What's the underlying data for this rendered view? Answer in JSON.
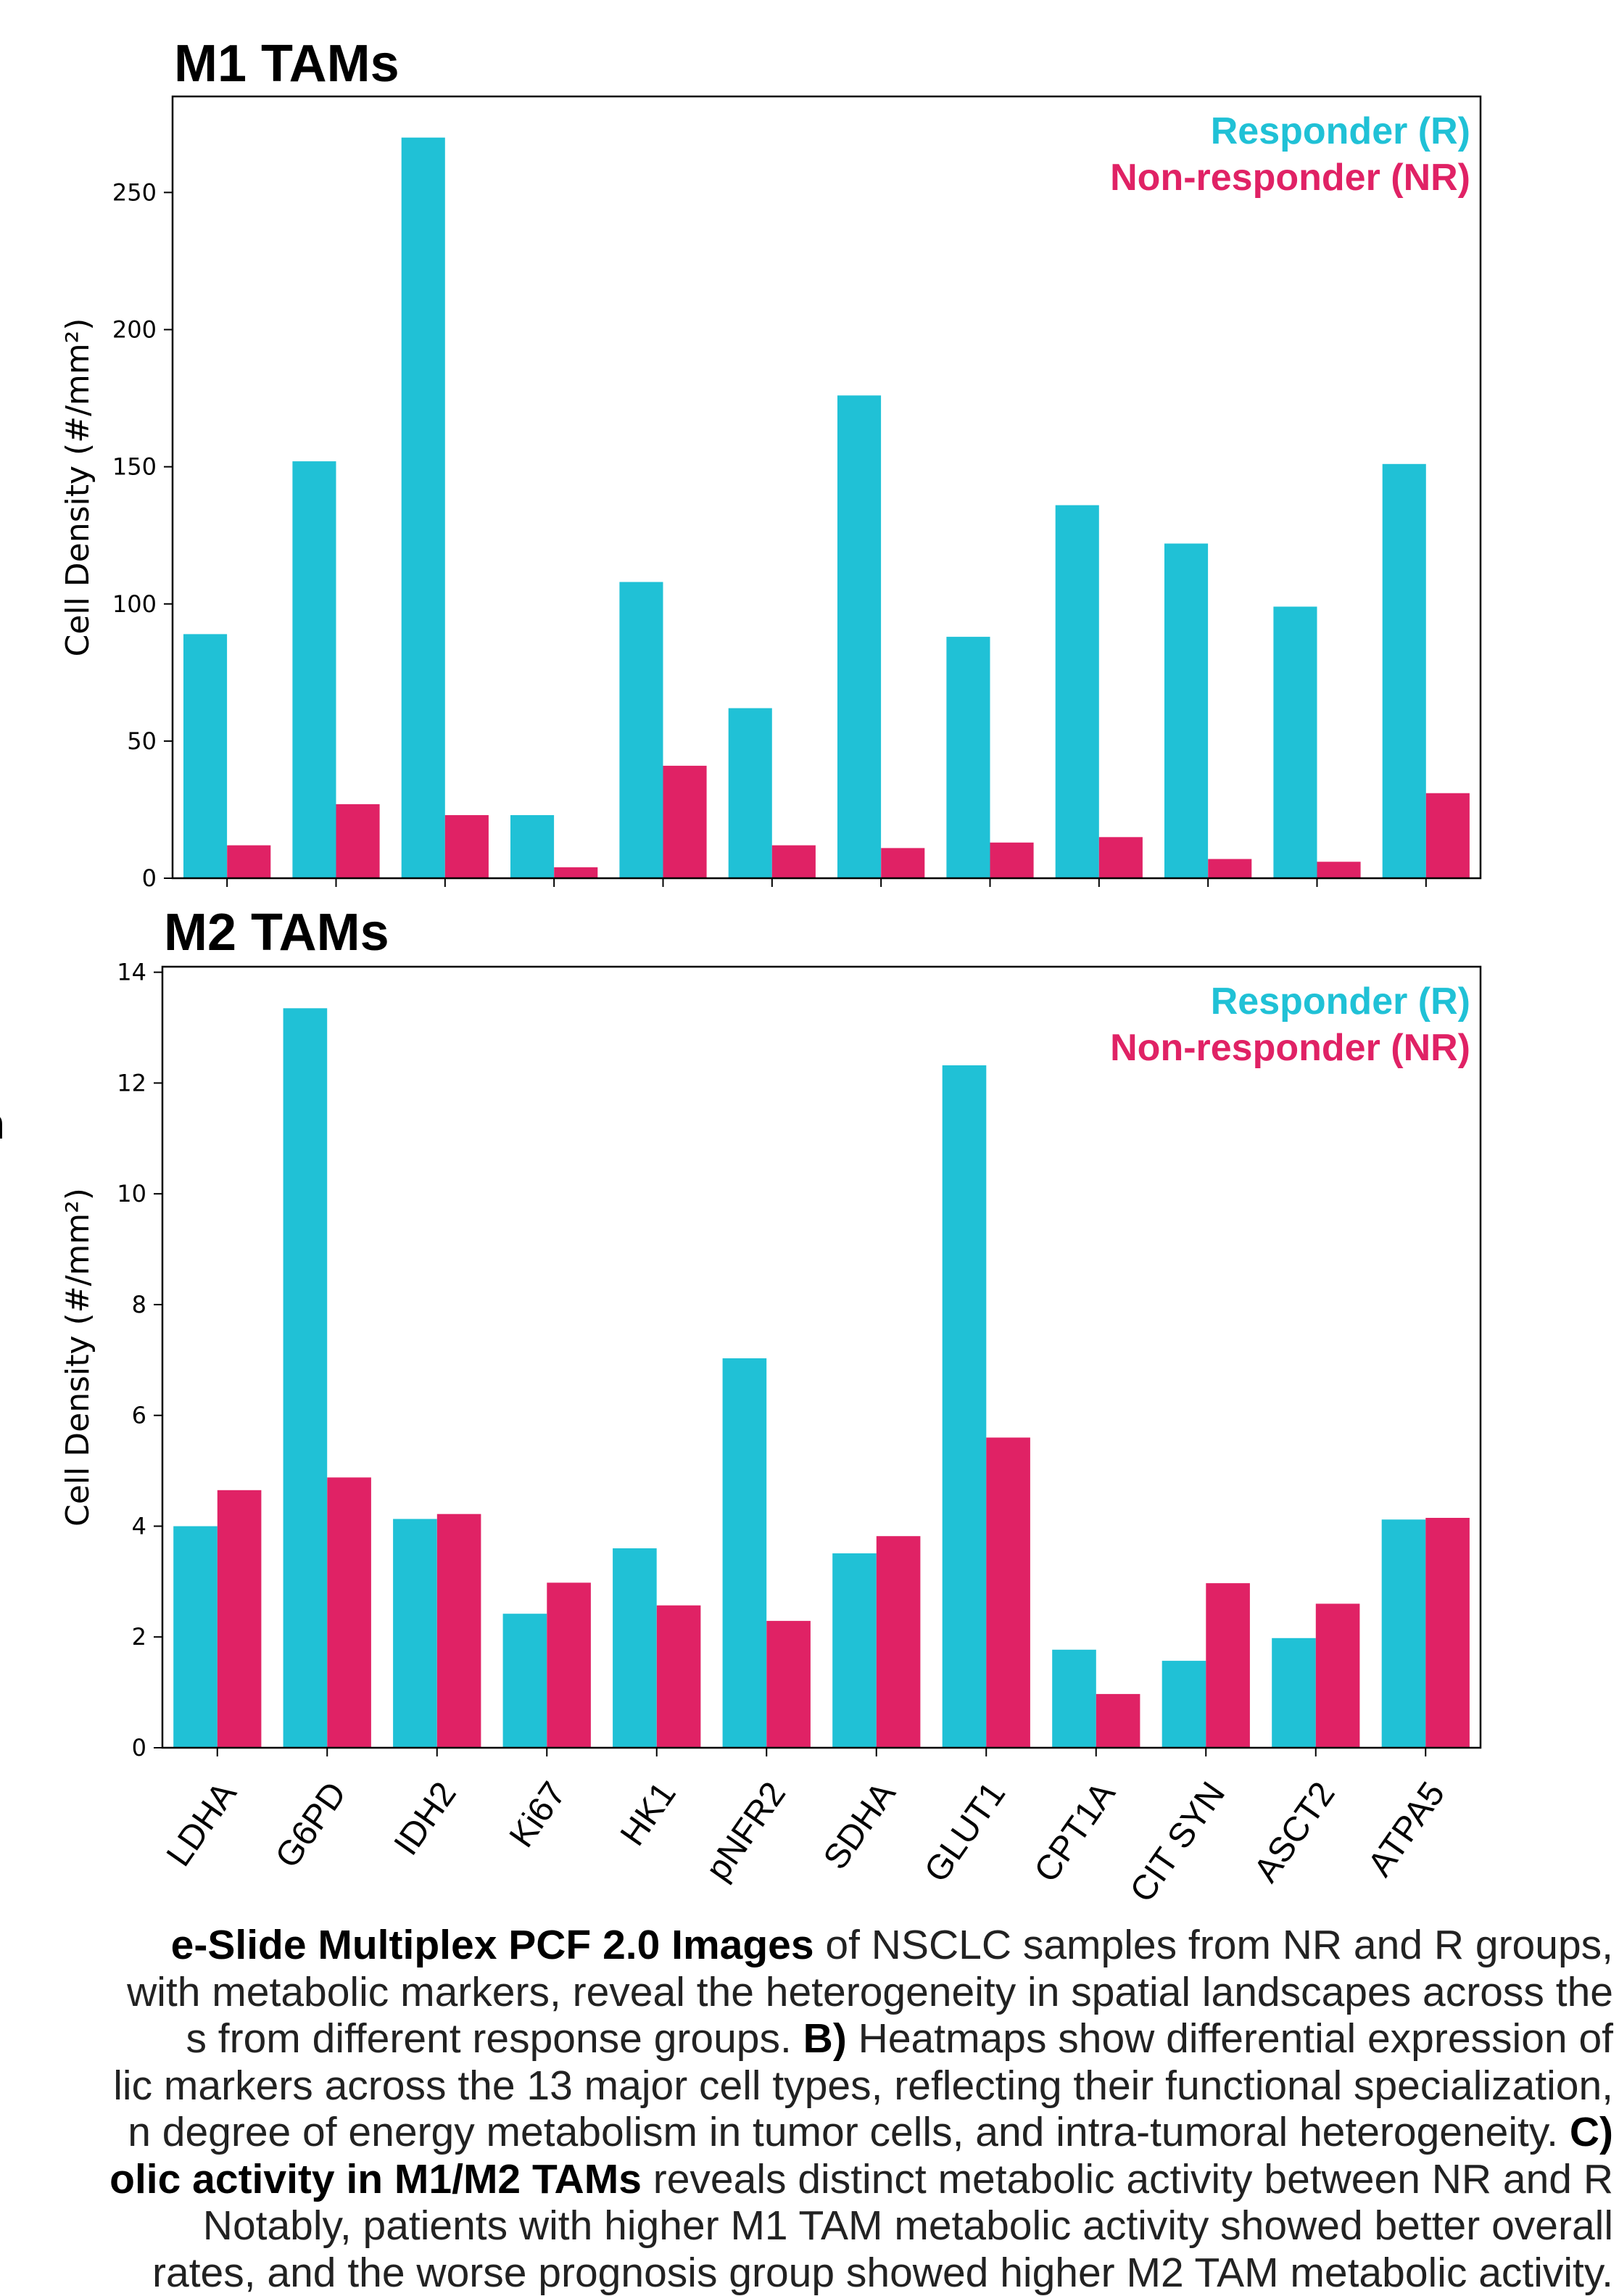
{
  "chart_data": [
    {
      "type": "bar",
      "title": "M1 TAMs",
      "ylabel": "Cell Density (#/mm²)",
      "ylim": [
        0,
        285
      ],
      "yticks": [
        "0",
        "50",
        "100",
        "150",
        "200",
        "250"
      ],
      "ytick_values": [
        0,
        50,
        100,
        150,
        200,
        250
      ],
      "categories": [
        "LDHA",
        "G6PD",
        "IDH2",
        "Ki67",
        "HK1",
        "pNFR2",
        "SDHA",
        "GLUT1",
        "CPT1A",
        "CIT SYN",
        "ASCT2",
        "ATPA5"
      ],
      "series": [
        {
          "name": "Responder (R)",
          "color": "#20c1d6",
          "values": [
            89,
            152,
            270,
            23,
            108,
            62,
            176,
            88,
            136,
            122,
            99,
            151
          ]
        },
        {
          "name": "Non-responder (NR)",
          "color": "#e02265",
          "values": [
            12,
            27,
            23,
            4,
            41,
            12,
            11,
            13,
            15,
            7,
            6,
            31
          ]
        }
      ],
      "legend": "top-right",
      "grid": false
    },
    {
      "type": "bar",
      "title": "M2 TAMs",
      "ylabel": "Cell Density (#/mm²)",
      "ylim": [
        0,
        14.1
      ],
      "yticks": [
        "0",
        "2",
        "4",
        "6",
        "8",
        "10",
        "12",
        "14"
      ],
      "ytick_values": [
        0,
        2,
        4,
        6,
        8,
        10,
        12,
        14
      ],
      "categories": [
        "LDHA",
        "G6PD",
        "IDH2",
        "Ki67",
        "HK1",
        "pNFR2",
        "SDHA",
        "GLUT1",
        "CPT1A",
        "CIT SYN",
        "ASCT2",
        "ATPA5"
      ],
      "series": [
        {
          "name": "Responder (R)",
          "color": "#20c1d6",
          "values": [
            4.0,
            13.35,
            4.13,
            2.42,
            3.6,
            7.03,
            3.51,
            12.32,
            1.77,
            1.57,
            1.98,
            4.12
          ]
        },
        {
          "name": "Non-responder (NR)",
          "color": "#e02265",
          "values": [
            4.65,
            4.88,
            4.22,
            2.98,
            2.57,
            2.29,
            3.82,
            5.6,
            0.97,
            2.97,
            2.6,
            4.15
          ]
        }
      ],
      "legend": "top-right",
      "grid": false
    }
  ],
  "caption": {
    "lines": [
      [
        {
          "t": "e-Slide Multiplex PCF 2.0 Images",
          "b": true
        },
        {
          "t": " of NSCLC samples from NR and R groups,",
          "b": false
        }
      ],
      [
        {
          "t": "with metabolic markers, reveal the heterogeneity in spatial landscapes across the",
          "b": false
        }
      ],
      [
        {
          "t": "s from different response groups. ",
          "b": false
        },
        {
          "t": "B)",
          "b": true
        },
        {
          "t": " Heatmaps show differential expression of",
          "b": false
        }
      ],
      [
        {
          "t": "lic markers across the 13 major cell types, reflecting their functional specialization,",
          "b": false
        }
      ],
      [
        {
          "t": "n degree of energy metabolism in tumor cells, and intra-tumoral heterogeneity. ",
          "b": false
        },
        {
          "t": "C)",
          "b": true
        }
      ],
      [
        {
          "t": "olic activity in M1/M2 TAMs",
          "b": true
        },
        {
          "t": " reveals distinct metabolic activity between NR and R",
          "b": false
        }
      ],
      [
        {
          "t": "Notably, patients with higher M1 TAM metabolic activity showed better overall",
          "b": false
        }
      ],
      [
        {
          "t": "rates, and the worse prognosis group showed higher M2 TAM metabolic activity.",
          "b": false
        }
      ]
    ]
  },
  "stray_label": "n"
}
